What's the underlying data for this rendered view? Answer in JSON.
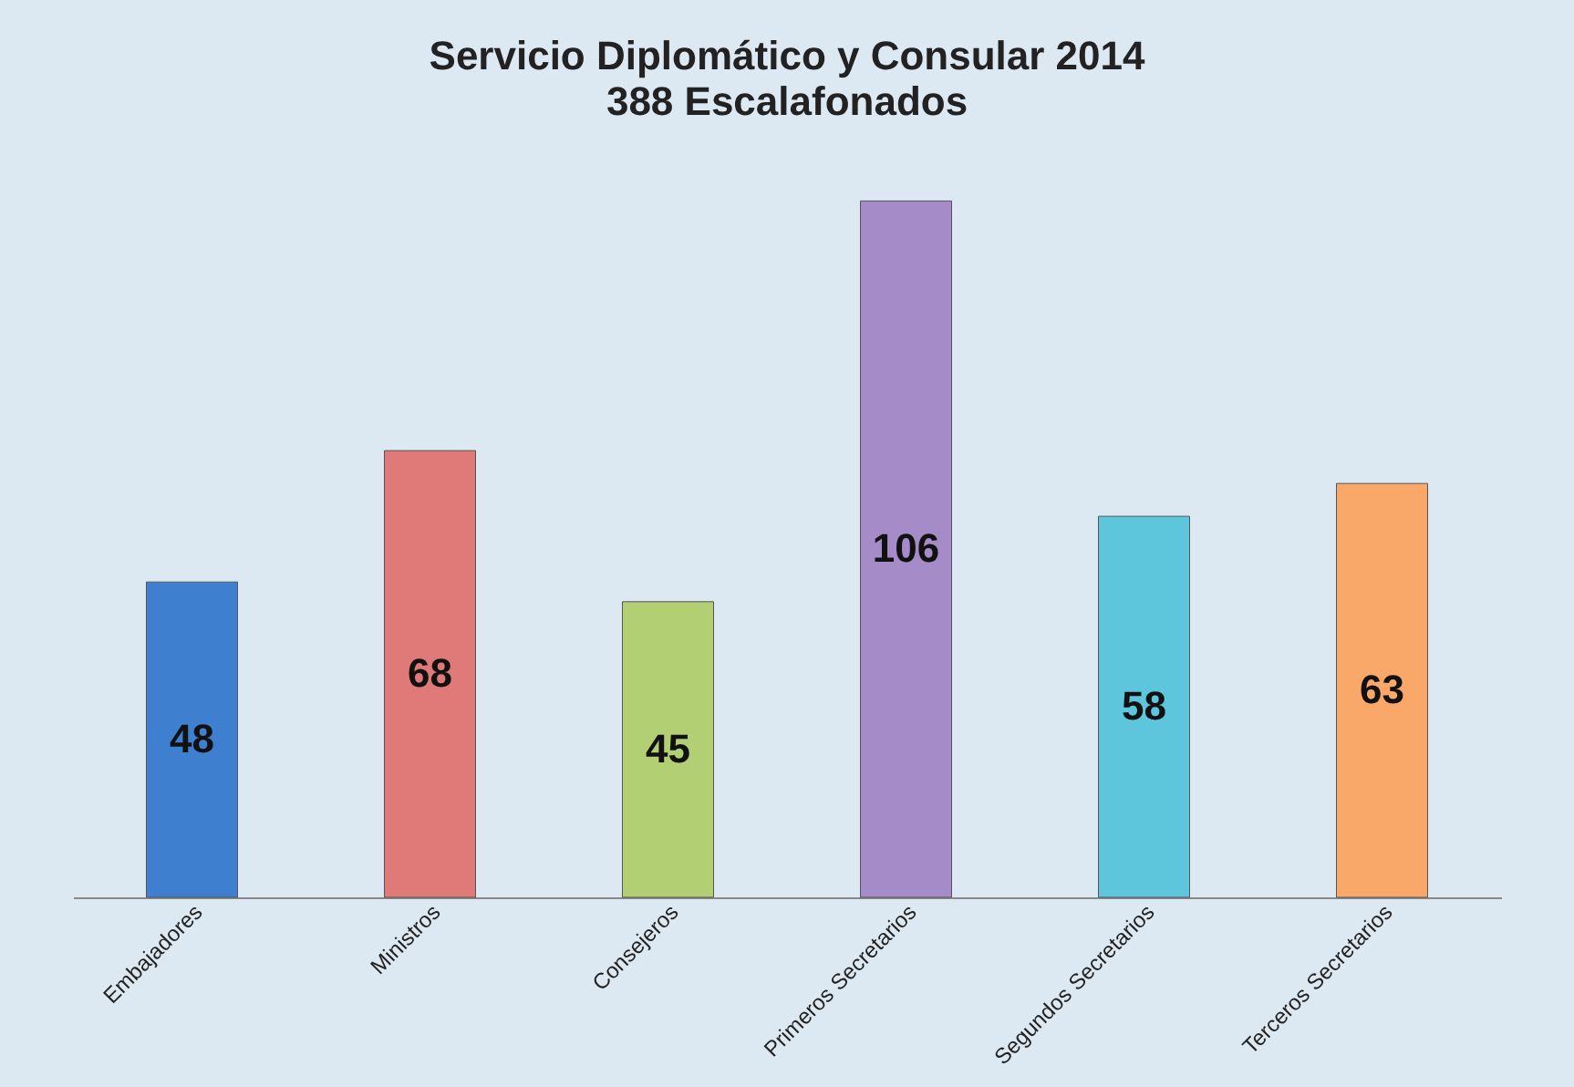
{
  "chart_data": {
    "type": "bar",
    "title": "Servicio Diplomático y Consular 2014",
    "subtitle": "388 Escalafonados",
    "categories": [
      "Embajadores",
      "Ministros",
      "Consejeros",
      "Primeros Secretarios",
      "Segundos Secretarios",
      "Terceros Secretarios"
    ],
    "values": [
      48,
      68,
      45,
      106,
      58,
      63
    ],
    "colors": [
      "#3f7fcf",
      "#e07a78",
      "#b3cf73",
      "#a58bc7",
      "#5ec6dc",
      "#f9a86a"
    ],
    "data_labels": true,
    "grid": false,
    "tick_labels": "x"
  }
}
